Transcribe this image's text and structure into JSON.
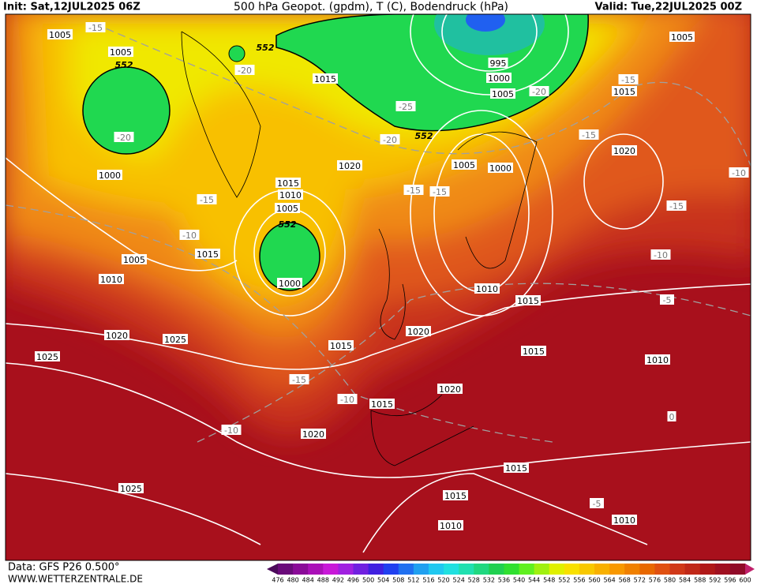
{
  "header": {
    "init": "Init: Sat,12JUL2025 06Z",
    "title": "500 hPa Geopot. (gpdm), T (C), Bodendruck (hPa)",
    "valid": "Valid: Tue,22JUL2025 00Z"
  },
  "footer": {
    "source": "Data: GFS P26 0.500°",
    "site": "WWW.WETTERZENTRALE.DE"
  },
  "colorbar": {
    "labels": [
      "476",
      "480",
      "484",
      "488",
      "492",
      "496",
      "500",
      "504",
      "508",
      "512",
      "516",
      "520",
      "524",
      "528",
      "532",
      "536",
      "540",
      "544",
      "548",
      "552",
      "556",
      "560",
      "564",
      "568",
      "572",
      "576",
      "580",
      "584",
      "588",
      "592",
      "596",
      "600"
    ],
    "colors": [
      "#4b0a5a",
      "#6a0a7a",
      "#8a0a98",
      "#aa10b8",
      "#c818d8",
      "#a020e0",
      "#7020e0",
      "#4020e0",
      "#2040f0",
      "#2070f0",
      "#20a0f0",
      "#20c8f0",
      "#20e0e0",
      "#20e0b0",
      "#20d880",
      "#20d050",
      "#30e030",
      "#60f020",
      "#a0f010",
      "#e0f000",
      "#f8e000",
      "#f8c800",
      "#f8b000",
      "#f89800",
      "#f08000",
      "#e86800",
      "#e05010",
      "#d03818",
      "#c02818",
      "#b01818",
      "#a01020",
      "#900a28",
      "#c0206a"
    ]
  },
  "map_labels": [
    "1005",
    "-15",
    "1005",
    "552",
    "-20",
    "1000",
    "-15",
    "-10",
    "1005",
    "1015",
    "1010",
    "552",
    "-20",
    "1015",
    "1020",
    "1015",
    "1010",
    "1005",
    "552",
    "1000",
    "-20",
    "552",
    "-25",
    "995",
    "1000",
    "1005",
    "-20",
    "-15",
    "-15",
    "1005",
    "1000",
    "1010",
    "1015",
    "1005",
    "-15",
    "1015",
    "-15",
    "1020",
    "-10",
    "-15",
    "-10",
    "-5",
    "1010",
    "1015",
    "1020",
    "1020",
    "1025",
    "1025",
    "1015",
    "-15",
    "-10",
    "1015",
    "1020",
    "-10",
    "1020",
    "0",
    "1025",
    "1015",
    "1015",
    "-5",
    "1010",
    "1010"
  ]
}
